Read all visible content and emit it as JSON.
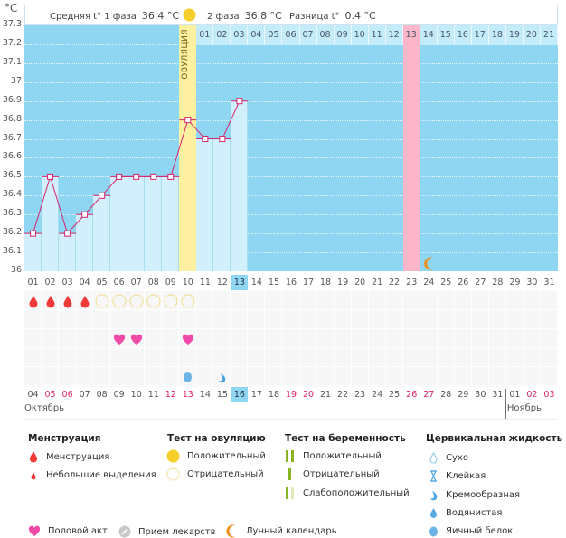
{
  "header": {
    "unit": "°C",
    "phase1_label": "Средняя t° 1 фаза",
    "phase1_value": "36.4 °C",
    "phase2_label": "2 фаза",
    "phase2_value": "36.8 °C",
    "diff_label": "Разница t°",
    "diff_value": "0.4 °C",
    "ovulation_label": "ОВУЛЯЦИЯ"
  },
  "colors": {
    "plot_bg": "#8fd6f2",
    "bar": "#d2f0fc",
    "ovulation": "#fdf0a0",
    "marked_day": "#fbb6c9",
    "line": "#d6246e",
    "weekend": "#e0245e"
  },
  "chart_data": {
    "type": "line",
    "xlabel": "",
    "ylabel": "°C",
    "ylim": [
      36,
      37.3
    ],
    "y_ticks": [
      "37.3",
      "37.2",
      "37.1",
      "37",
      "36.9",
      "36.8",
      "36.7",
      "36.6",
      "36.5",
      "36.4",
      "36.3",
      "36.2",
      "36.1",
      "36"
    ],
    "cycle_days": [
      "01",
      "02",
      "03",
      "04",
      "05",
      "06",
      "07",
      "08",
      "09",
      "10",
      "11",
      "12",
      "13",
      "14",
      "15",
      "16",
      "17",
      "18",
      "19",
      "20",
      "21",
      "22",
      "23",
      "24",
      "25",
      "26",
      "27",
      "28",
      "29",
      "30",
      "31"
    ],
    "series": [
      {
        "days": [
          1,
          2,
          3,
          4,
          5,
          6,
          7,
          8,
          9,
          10,
          11,
          12,
          13
        ],
        "values": [
          36.2,
          36.5,
          36.2,
          36.3,
          36.4,
          36.5,
          36.5,
          36.5,
          36.5,
          36.8,
          36.7,
          36.7,
          36.9
        ]
      }
    ],
    "ovulation_day": 10,
    "marked_day": 23,
    "current_cycle_day": 13,
    "moon_day": 24,
    "grid": true
  },
  "phase2_days": [
    "01",
    "02",
    "03",
    "04",
    "05",
    "06",
    "07",
    "08",
    "09",
    "10",
    "11",
    "12",
    "13",
    "14",
    "15",
    "16",
    "17",
    "18",
    "19",
    "20",
    "21"
  ],
  "dates": [
    {
      "d": "04",
      "we": false
    },
    {
      "d": "05",
      "we": true
    },
    {
      "d": "06",
      "we": true
    },
    {
      "d": "07",
      "we": false
    },
    {
      "d": "08",
      "we": false
    },
    {
      "d": "09",
      "we": false
    },
    {
      "d": "10",
      "we": false
    },
    {
      "d": "11",
      "we": false
    },
    {
      "d": "12",
      "we": true
    },
    {
      "d": "13",
      "we": true
    },
    {
      "d": "14",
      "we": false
    },
    {
      "d": "15",
      "we": false
    },
    {
      "d": "16",
      "we": false
    },
    {
      "d": "17",
      "we": false
    },
    {
      "d": "18",
      "we": false
    },
    {
      "d": "19",
      "we": true
    },
    {
      "d": "20",
      "we": true
    },
    {
      "d": "21",
      "we": false
    },
    {
      "d": "22",
      "we": false
    },
    {
      "d": "23",
      "we": false
    },
    {
      "d": "24",
      "we": false
    },
    {
      "d": "25",
      "we": false
    },
    {
      "d": "26",
      "we": true
    },
    {
      "d": "27",
      "we": true
    },
    {
      "d": "28",
      "we": false
    },
    {
      "d": "29",
      "we": false
    },
    {
      "d": "30",
      "we": false
    },
    {
      "d": "31",
      "we": false
    },
    {
      "d": "01",
      "we": false
    },
    {
      "d": "02",
      "we": true
    },
    {
      "d": "03",
      "we": true
    }
  ],
  "months": [
    "Октябрь",
    "Ноябрь"
  ],
  "markers": {
    "menstruation_days": [
      1,
      2,
      3,
      4
    ],
    "ovulation_test_negative_days": [
      5,
      6,
      7,
      8,
      9,
      10
    ],
    "intercourse_days": [
      6,
      7,
      10
    ],
    "cervical": [
      {
        "day": 10,
        "type": "egg-white"
      },
      {
        "day": 12,
        "type": "creamy"
      }
    ]
  },
  "legend": {
    "menstruation": {
      "title": "Менструация",
      "items": [
        "Менструация",
        "Небольшие выделения"
      ]
    },
    "ovulation_test": {
      "title": "Тест на овуляцию",
      "items": [
        "Положительный",
        "Отрицательный"
      ]
    },
    "pregnancy_test": {
      "title": "Тест на беременность",
      "items": [
        "Положительный",
        "Отрицательный",
        "Слабоположительный"
      ]
    },
    "cervical": {
      "title": "Цервикальная жидкость",
      "items": [
        "Сухо",
        "Клейкая",
        "Кремообразная",
        "Водянистая",
        "Яичный белок"
      ]
    },
    "other": [
      "Половой акт",
      "Прием лекарств",
      "Лунный календарь"
    ]
  }
}
